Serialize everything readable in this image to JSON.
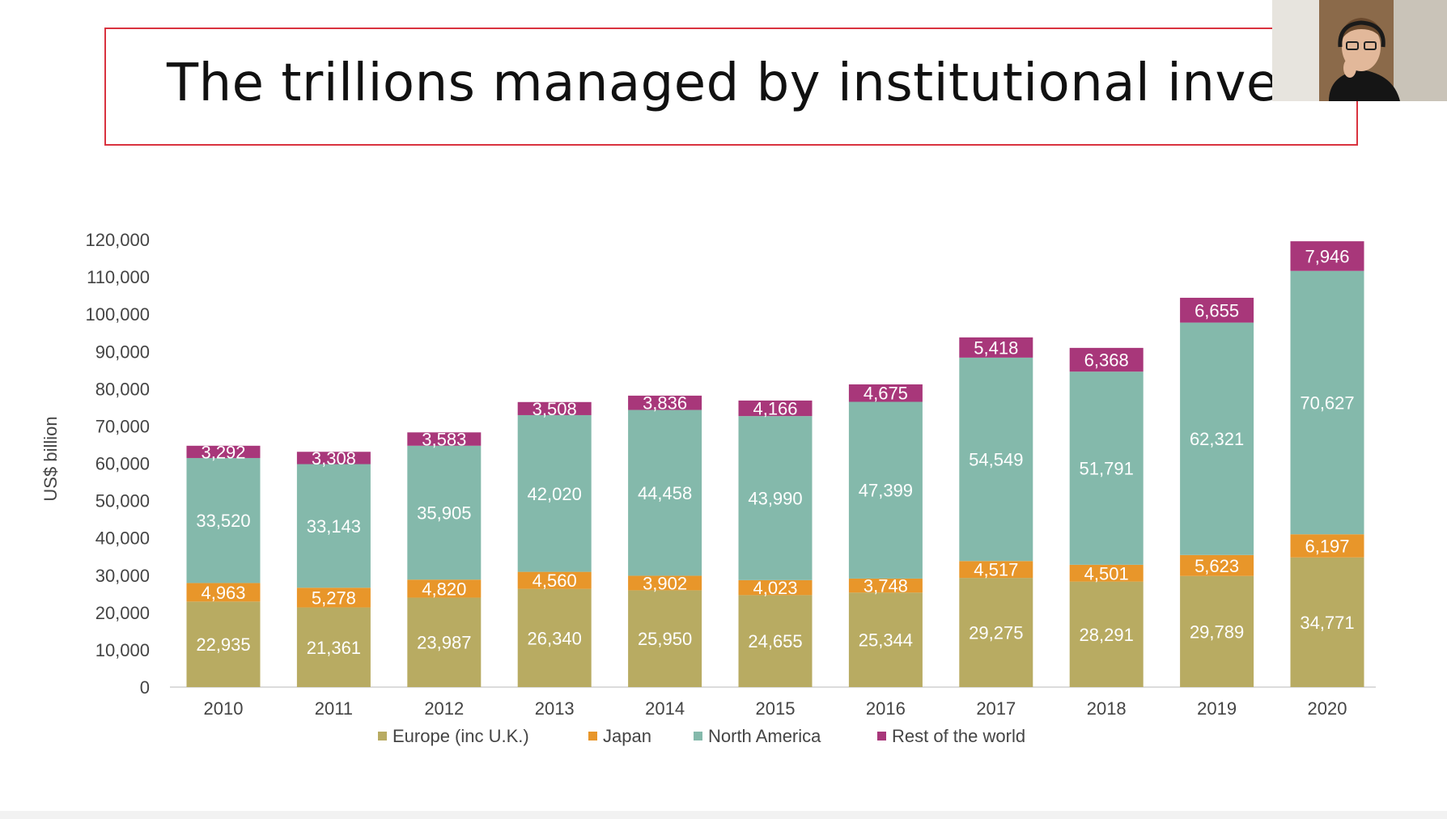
{
  "slide": {
    "title": "The trillions managed by institutional investors"
  },
  "chart_data": {
    "type": "bar",
    "stacked": true,
    "title": "",
    "xlabel": "",
    "ylabel": "US$ billion",
    "ylim": [
      0,
      120000
    ],
    "yticks": [
      "0",
      "10,000",
      "20,000",
      "30,000",
      "40,000",
      "50,000",
      "60,000",
      "70,000",
      "80,000",
      "90,000",
      "100,000",
      "110,000",
      "120,000"
    ],
    "categories": [
      "2010",
      "2011",
      "2012",
      "2013",
      "2014",
      "2015",
      "2016",
      "2017",
      "2018",
      "2019",
      "2020"
    ],
    "legend_position": "bottom",
    "series": [
      {
        "name": "Europe (inc U.K.)",
        "color": "#b8ab62",
        "values": [
          22935,
          21361,
          23987,
          26340,
          25950,
          24655,
          25344,
          29275,
          28291,
          29789,
          34771
        ],
        "labels": [
          "22,935",
          "21,361",
          "23,987",
          "26,340",
          "25,950",
          "24,655",
          "25,344",
          "29,275",
          "28,291",
          "29,789",
          "34,771"
        ]
      },
      {
        "name": "Japan",
        "color": "#e8962a",
        "values": [
          4963,
          5278,
          4820,
          4560,
          3902,
          4023,
          3748,
          4517,
          4501,
          5623,
          6197
        ],
        "labels": [
          "4,963",
          "5,278",
          "4,820",
          "4,560",
          "3,902",
          "4,023",
          "3,748",
          "4,517",
          "4,501",
          "5,623",
          "6,197"
        ]
      },
      {
        "name": "North America",
        "color": "#84b9ab",
        "values": [
          33520,
          33143,
          35905,
          42020,
          44458,
          43990,
          47399,
          54549,
          51791,
          62321,
          70627
        ],
        "labels": [
          "33,520",
          "33,143",
          "35,905",
          "42,020",
          "44,458",
          "43,990",
          "47,399",
          "54,549",
          "51,791",
          "62,321",
          "70,627"
        ]
      },
      {
        "name": "Rest of the world",
        "color": "#a8377a",
        "values": [
          3292,
          3308,
          3583,
          3508,
          3836,
          4166,
          4675,
          5418,
          6368,
          6655,
          7946
        ],
        "labels": [
          "3,292",
          "3,308",
          "3,583",
          "3,508",
          "3,836",
          "4,166",
          "4,675",
          "5,418",
          "6,368",
          "6,655",
          "7,946"
        ]
      }
    ]
  }
}
